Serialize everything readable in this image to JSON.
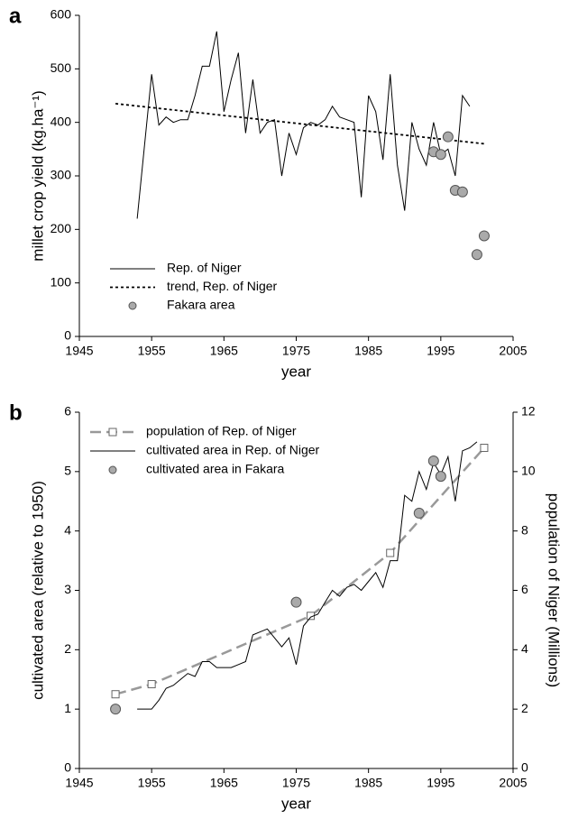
{
  "chart_data": [
    {
      "type": "line",
      "label": "a",
      "xlabel": "year",
      "ylabel": "millet crop yield (kg.ha⁻¹)",
      "xlim": [
        1945,
        2005
      ],
      "xticks": [
        1945,
        1955,
        1965,
        1975,
        1985,
        1995,
        2005
      ],
      "ylim": [
        0,
        600
      ],
      "yticks": [
        0,
        100,
        200,
        300,
        400,
        500,
        600
      ],
      "legend": "lower left",
      "series": [
        {
          "name": "Rep. of Niger",
          "color": "#000000",
          "line_style": "solid",
          "marker": null,
          "x": [
            1953,
            1955,
            1956,
            1957,
            1958,
            1959,
            1960,
            1961,
            1962,
            1963,
            1964,
            1965,
            1966,
            1967,
            1968,
            1969,
            1970,
            1971,
            1972,
            1973,
            1974,
            1975,
            1976,
            1977,
            1978,
            1979,
            1980,
            1981,
            1982,
            1983,
            1984,
            1985,
            1986,
            1987,
            1988,
            1989,
            1990,
            1991,
            1992,
            1993,
            1994,
            1995,
            1996,
            1997,
            1998,
            1999
          ],
          "values": [
            220,
            490,
            395,
            410,
            400,
            405,
            405,
            450,
            505,
            505,
            570,
            420,
            480,
            530,
            380,
            480,
            380,
            400,
            405,
            300,
            380,
            340,
            390,
            400,
            395,
            405,
            430,
            410,
            405,
            400,
            260,
            450,
            420,
            330,
            490,
            320,
            235,
            400,
            350,
            320,
            400,
            340,
            350,
            300,
            450,
            430
          ]
        },
        {
          "name": "trend, Rep. of Niger",
          "color": "#000000",
          "line_style": "dotted",
          "marker": null,
          "x": [
            1950,
            2001
          ],
          "values": [
            435,
            360
          ]
        },
        {
          "name": "Fakara area",
          "color": "#aaaaaa",
          "line_style": null,
          "marker": "circle",
          "x": [
            1994,
            1995,
            1996,
            1997,
            1998,
            2000,
            2001
          ],
          "values": [
            345,
            340,
            373,
            273,
            270,
            153,
            188
          ]
        }
      ]
    },
    {
      "type": "line",
      "label": "b",
      "xlabel": "year",
      "ylabel": "cultivated area (relative to 1950)",
      "y2label": "population of Niger (Millions)",
      "xlim": [
        1945,
        2005
      ],
      "xticks": [
        1945,
        1955,
        1965,
        1975,
        1985,
        1995,
        2005
      ],
      "ylim": [
        0,
        6
      ],
      "yticks": [
        0,
        1,
        2,
        3,
        4,
        5,
        6
      ],
      "y2lim": [
        0,
        12
      ],
      "y2ticks": [
        0,
        2,
        4,
        6,
        8,
        10,
        12
      ],
      "legend": "upper left",
      "series": [
        {
          "name": "population of Rep. of Niger",
          "color": "#999999",
          "line_style": "dashed",
          "marker": "square",
          "axis": "y2",
          "x": [
            1950,
            1955,
            1977,
            1988,
            2001
          ],
          "values": [
            2.5,
            2.84,
            5.14,
            7.26,
            10.8
          ]
        },
        {
          "name": "cultivated area in Rep. of Niger",
          "color": "#000000",
          "line_style": "solid",
          "marker": null,
          "x": [
            1953,
            1954,
            1955,
            1956,
            1957,
            1958,
            1959,
            1960,
            1961,
            1962,
            1963,
            1964,
            1965,
            1966,
            1967,
            1968,
            1969,
            1970,
            1971,
            1972,
            1973,
            1974,
            1975,
            1976,
            1977,
            1978,
            1979,
            1980,
            1981,
            1982,
            1983,
            1984,
            1985,
            1986,
            1987,
            1988,
            1989,
            1990,
            1991,
            1992,
            1993,
            1994,
            1995,
            1996,
            1997,
            1998,
            1999,
            2000
          ],
          "values": [
            1.0,
            1.0,
            1.0,
            1.15,
            1.35,
            1.4,
            1.5,
            1.6,
            1.55,
            1.8,
            1.8,
            1.7,
            1.7,
            1.7,
            1.75,
            1.8,
            2.25,
            2.3,
            2.35,
            2.2,
            2.05,
            2.2,
            1.75,
            2.4,
            2.55,
            2.6,
            2.8,
            3.0,
            2.9,
            3.05,
            3.1,
            3.0,
            3.15,
            3.3,
            3.05,
            3.5,
            3.5,
            4.6,
            4.5,
            5.0,
            4.7,
            5.15,
            4.95,
            5.25,
            4.5,
            5.35,
            5.4,
            5.5
          ]
        },
        {
          "name": "cultivated area in Fakara",
          "color": "#aaaaaa",
          "line_style": null,
          "marker": "circle",
          "x": [
            1950,
            1975,
            1992,
            1994,
            1995
          ],
          "values": [
            1.0,
            2.8,
            4.3,
            5.18,
            4.92
          ]
        }
      ]
    }
  ]
}
